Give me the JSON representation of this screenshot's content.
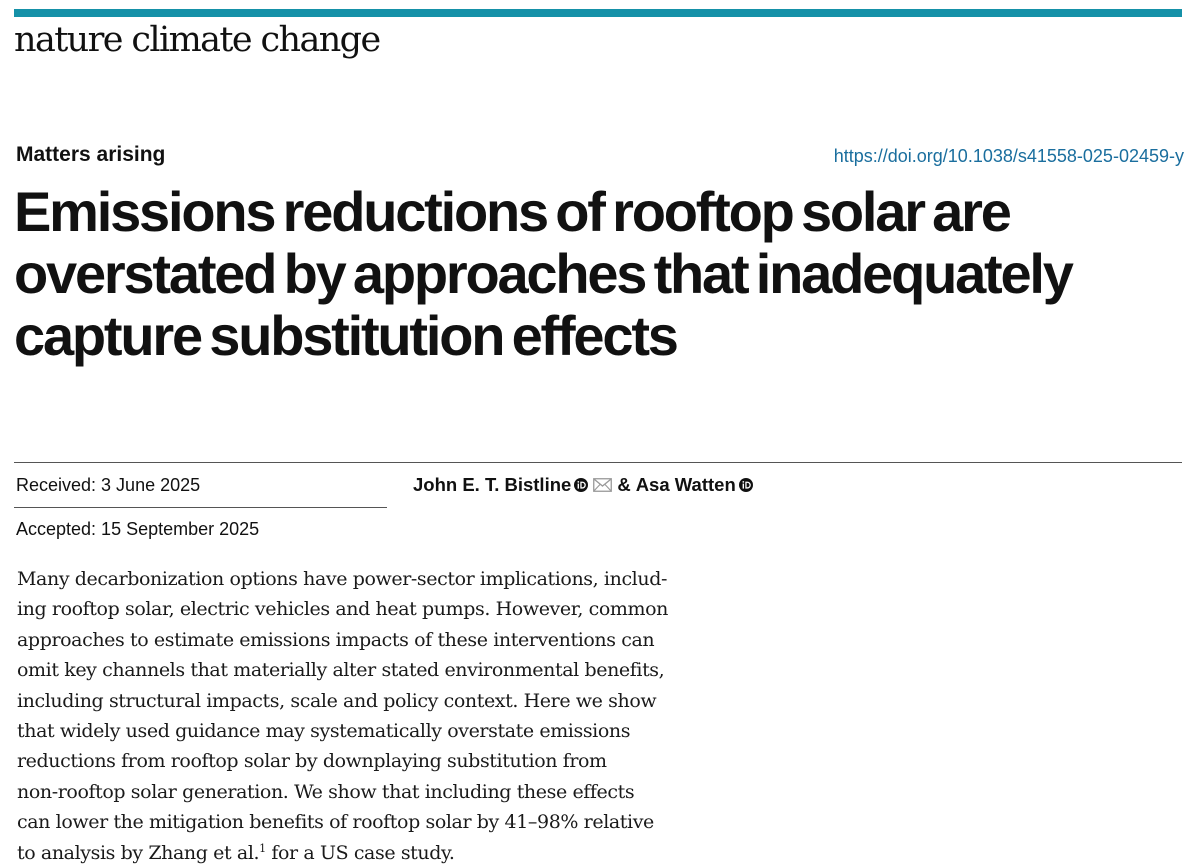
{
  "journal": {
    "name": "nature climate change",
    "accent_color": "#1591a8"
  },
  "article": {
    "type": "Matters arising",
    "doi": "https://doi.org/10.1038/s41558-025-02459-y",
    "title": "Emissions reductions of rooftop solar are overstated by approaches that inadequately capture substitution effects"
  },
  "dates": {
    "received": "Received: 3 June 2025",
    "accepted": "Accepted: 15 September 2025"
  },
  "authors": {
    "first": "John E. T. Bistline",
    "separator": "&",
    "second": "Asa Watten",
    "icons": [
      "orcid-icon",
      "mail-icon",
      "orcid-icon"
    ]
  },
  "abstract": {
    "lines": [
      "Many decarbonization options have power-sector implications, includ-",
      "ing rooftop solar, electric vehicles and heat pumps. However, common",
      "approaches to estimate emissions impacts of these interventions can",
      "omit key channels that materially alter stated environmental benefits,",
      "including structural impacts, scale and policy context. Here we show",
      "that widely used guidance may systematically overstate emissions",
      "reductions from rooftop solar by downplaying substitution from",
      "non-rooftop solar generation. We show that including these effects",
      "can lower the mitigation benefits of rooftop solar by 41–98% relative"
    ],
    "last_line_before": "to analysis by Zhang et al.",
    "citation": "1",
    "last_line_after": " for a US case study."
  }
}
